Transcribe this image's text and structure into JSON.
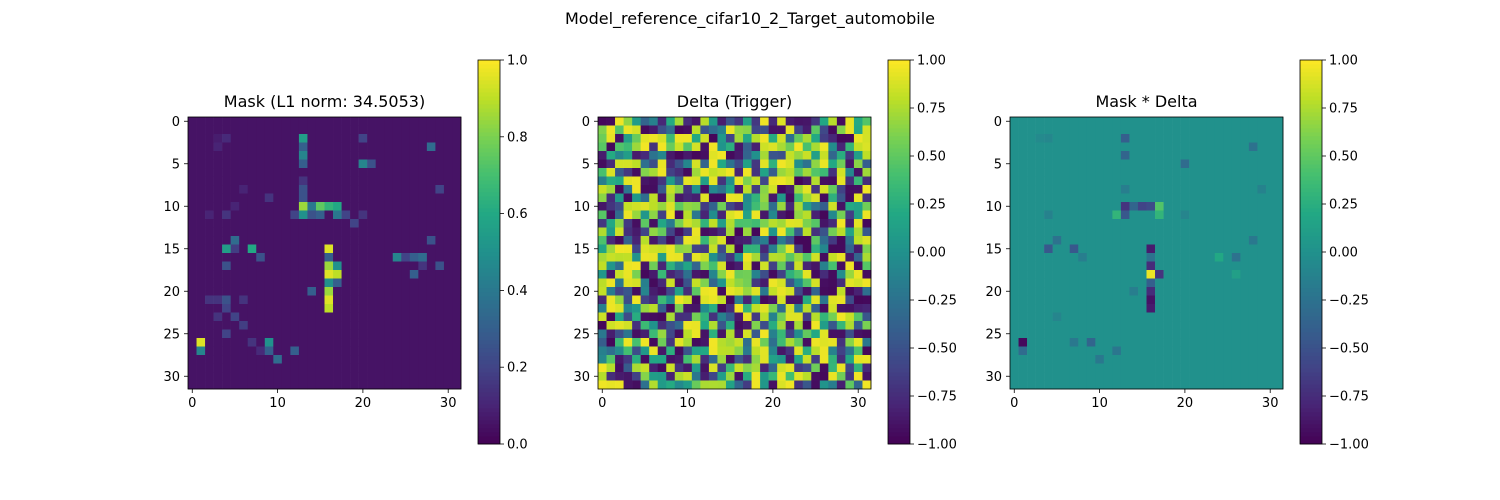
{
  "figure": {
    "suptitle": "Model_reference_cifar10_2_Target_automobile"
  },
  "chart_data": [
    {
      "type": "heatmap",
      "title": "Mask (L1 norm: 34.5053)",
      "xlabel": "",
      "ylabel": "",
      "x_ticks": [
        "0",
        "10",
        "20",
        "30"
      ],
      "y_ticks": [
        "0",
        "5",
        "10",
        "15",
        "20",
        "25",
        "30"
      ],
      "xlim": [
        -0.5,
        31.5
      ],
      "ylim": [
        31.5,
        -0.5
      ],
      "colormap": "viridis",
      "clim": [
        0,
        1
      ],
      "colorbar_ticks": [
        "0.0",
        "0.2",
        "0.4",
        "0.6",
        "0.8",
        "1.0"
      ],
      "grid_size": [
        32,
        32
      ],
      "background_value": 0.05,
      "cells": [
        [
          1,
          26,
          0.95
        ],
        [
          1,
          27,
          0.45
        ],
        [
          3,
          2,
          0.08
        ],
        [
          3,
          3,
          0.1
        ],
        [
          4,
          2,
          0.12
        ],
        [
          4,
          21,
          0.25
        ],
        [
          4,
          22,
          0.12
        ],
        [
          5,
          14,
          0.35
        ],
        [
          5,
          15,
          0.18
        ],
        [
          5,
          10,
          0.1
        ],
        [
          6,
          24,
          0.18
        ],
        [
          6,
          8,
          0.1
        ],
        [
          7,
          15,
          0.6
        ],
        [
          7,
          26,
          0.25
        ],
        [
          8,
          16,
          0.25
        ],
        [
          9,
          26,
          0.5
        ],
        [
          9,
          27,
          0.3
        ],
        [
          13,
          10,
          0.85
        ],
        [
          13,
          11,
          0.5
        ],
        [
          14,
          10,
          0.4
        ],
        [
          14,
          11,
          0.25
        ],
        [
          15,
          10,
          0.75
        ],
        [
          15,
          11,
          0.3
        ],
        [
          16,
          10,
          0.65
        ],
        [
          16,
          15,
          0.95
        ],
        [
          16,
          16,
          0.3
        ],
        [
          16,
          17,
          0.85
        ],
        [
          16,
          18,
          0.95
        ],
        [
          16,
          19,
          0.5
        ],
        [
          16,
          20,
          0.85
        ],
        [
          16,
          21,
          0.95
        ],
        [
          16,
          22,
          0.9
        ],
        [
          17,
          10,
          0.6
        ],
        [
          17,
          11,
          0.4
        ],
        [
          17,
          17,
          0.5
        ],
        [
          17,
          18,
          0.9
        ],
        [
          17,
          19,
          0.3
        ],
        [
          13,
          2,
          0.55
        ],
        [
          13,
          3,
          0.3
        ],
        [
          13,
          4,
          0.45
        ],
        [
          13,
          5,
          0.3
        ],
        [
          13,
          7,
          0.15
        ],
        [
          13,
          8,
          0.25
        ],
        [
          13,
          9,
          0.25
        ],
        [
          12,
          11,
          0.2
        ],
        [
          14,
          20,
          0.3
        ],
        [
          18,
          11,
          0.2
        ],
        [
          19,
          12,
          0.2
        ],
        [
          20,
          11,
          0.15
        ],
        [
          20,
          2,
          0.2
        ],
        [
          20,
          5,
          0.45
        ],
        [
          21,
          5,
          0.25
        ],
        [
          24,
          16,
          0.45
        ],
        [
          25,
          16,
          0.2
        ],
        [
          26,
          16,
          0.3
        ],
        [
          26,
          18,
          0.3
        ],
        [
          27,
          16,
          0.35
        ],
        [
          27,
          17,
          0.15
        ],
        [
          28,
          14,
          0.25
        ],
        [
          28,
          3,
          0.35
        ],
        [
          29,
          8,
          0.2
        ],
        [
          29,
          17,
          0.25
        ],
        [
          7,
          26,
          0.15
        ],
        [
          10,
          28,
          0.35
        ],
        [
          8,
          27,
          0.12
        ],
        [
          12,
          27,
          0.3
        ],
        [
          4,
          11,
          0.15
        ],
        [
          4,
          22,
          0.2
        ],
        [
          3,
          21,
          0.15
        ],
        [
          2,
          11,
          0.1
        ],
        [
          4,
          17,
          0.25
        ],
        [
          4,
          15,
          0.55
        ],
        [
          9,
          9,
          0.15
        ],
        [
          3,
          23,
          0.15
        ],
        [
          4,
          25,
          0.2
        ],
        [
          2,
          21,
          0.15
        ],
        [
          6,
          21,
          0.15
        ],
        [
          5,
          23,
          0.2
        ]
      ]
    },
    {
      "type": "heatmap",
      "title": "Delta (Trigger)",
      "xlabel": "",
      "ylabel": "",
      "x_ticks": [
        "0",
        "10",
        "20",
        "30"
      ],
      "y_ticks": [
        "0",
        "5",
        "10",
        "15",
        "20",
        "25",
        "30"
      ],
      "xlim": [
        -0.5,
        31.5
      ],
      "ylim": [
        31.5,
        -0.5
      ],
      "colormap": "viridis",
      "clim": [
        -1,
        1
      ],
      "colorbar_ticks": [
        "−1.00",
        "−0.75",
        "−0.50",
        "−0.25",
        "0.00",
        "0.25",
        "0.50",
        "0.75",
        "1.00"
      ],
      "grid_size": [
        32,
        32
      ],
      "pattern": "random",
      "pattern_seed": 7
    },
    {
      "type": "heatmap",
      "title": "Mask * Delta",
      "xlabel": "",
      "ylabel": "",
      "x_ticks": [
        "0",
        "10",
        "20",
        "30"
      ],
      "y_ticks": [
        "0",
        "5",
        "10",
        "15",
        "20",
        "25",
        "30"
      ],
      "xlim": [
        -0.5,
        31.5
      ],
      "ylim": [
        31.5,
        -0.5
      ],
      "colormap": "viridis",
      "clim": [
        -1,
        1
      ],
      "colorbar_ticks": [
        "−1.00",
        "−0.75",
        "−0.50",
        "−0.25",
        "0.00",
        "0.25",
        "0.50",
        "0.75",
        "1.00"
      ],
      "grid_size": [
        32,
        32
      ],
      "background_value": 0.0,
      "cells": [
        [
          1,
          26,
          -0.95
        ],
        [
          1,
          27,
          -0.3
        ],
        [
          3,
          2,
          -0.06
        ],
        [
          4,
          2,
          -0.08
        ],
        [
          5,
          14,
          -0.25
        ],
        [
          7,
          15,
          -0.45
        ],
        [
          7,
          26,
          -0.2
        ],
        [
          8,
          16,
          -0.15
        ],
        [
          9,
          26,
          -0.35
        ],
        [
          13,
          10,
          -0.7
        ],
        [
          13,
          11,
          -0.45
        ],
        [
          14,
          10,
          -0.35
        ],
        [
          15,
          10,
          -0.6
        ],
        [
          16,
          10,
          -0.55
        ],
        [
          16,
          15,
          -0.85
        ],
        [
          16,
          16,
          -0.25
        ],
        [
          16,
          17,
          -0.75
        ],
        [
          16,
          18,
          0.95
        ],
        [
          16,
          19,
          -0.4
        ],
        [
          16,
          20,
          -0.75
        ],
        [
          16,
          21,
          -0.9
        ],
        [
          16,
          22,
          -0.85
        ],
        [
          17,
          10,
          0.45
        ],
        [
          17,
          11,
          0.3
        ],
        [
          17,
          18,
          -0.7
        ],
        [
          13,
          4,
          -0.35
        ],
        [
          12,
          11,
          0.3
        ],
        [
          20,
          5,
          -0.3
        ],
        [
          24,
          16,
          0.2
        ],
        [
          26,
          16,
          -0.25
        ],
        [
          26,
          18,
          0.12
        ],
        [
          4,
          15,
          -0.45
        ],
        [
          4,
          11,
          -0.12
        ],
        [
          28,
          14,
          -0.2
        ],
        [
          28,
          3,
          -0.25
        ],
        [
          12,
          27,
          -0.22
        ],
        [
          10,
          28,
          -0.2
        ],
        [
          5,
          23,
          -0.1
        ],
        [
          20,
          11,
          -0.1
        ],
        [
          13,
          2,
          -0.4
        ],
        [
          13,
          8,
          -0.15
        ],
        [
          14,
          20,
          -0.15
        ],
        [
          29,
          8,
          -0.12
        ]
      ]
    }
  ]
}
